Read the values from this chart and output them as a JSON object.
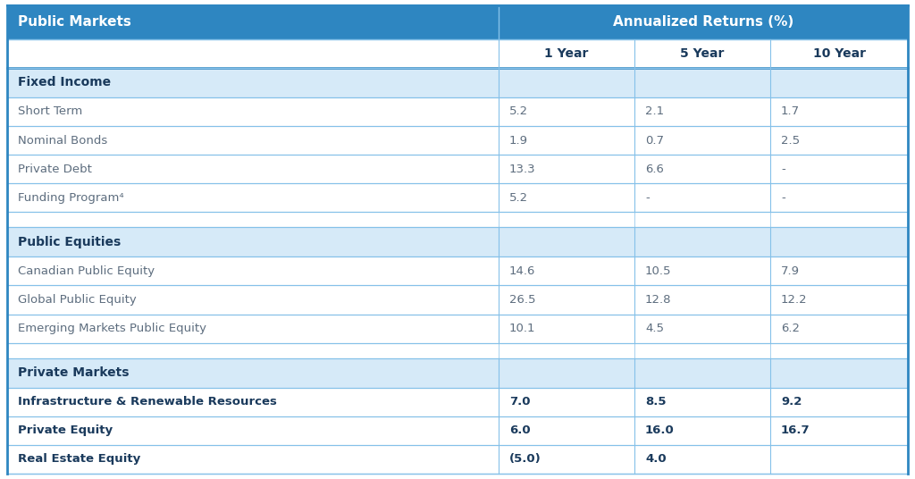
{
  "title_col": "Public Markets",
  "title_returns": "Annualized Returns (%)",
  "col_headers": [
    "1 Year",
    "5 Year",
    "10 Year"
  ],
  "sections": [
    {
      "header": "Fixed Income",
      "rows": [
        {
          "label": "Short Term",
          "bold": false,
          "vals": [
            "5.2",
            "2.1",
            "1.7"
          ]
        },
        {
          "label": "Nominal Bonds",
          "bold": false,
          "vals": [
            "1.9",
            "0.7",
            "2.5"
          ]
        },
        {
          "label": "Private Debt",
          "bold": false,
          "vals": [
            "13.3",
            "6.6",
            "-"
          ]
        },
        {
          "label": "Funding Program⁴",
          "bold": false,
          "vals": [
            "5.2",
            "-",
            "-"
          ]
        }
      ]
    },
    {
      "header": "Public Equities",
      "rows": [
        {
          "label": "Canadian Public Equity",
          "bold": false,
          "vals": [
            "14.6",
            "10.5",
            "7.9"
          ]
        },
        {
          "label": "Global Public Equity",
          "bold": false,
          "vals": [
            "26.5",
            "12.8",
            "12.2"
          ]
        },
        {
          "label": "Emerging Markets Public Equity",
          "bold": false,
          "vals": [
            "10.1",
            "4.5",
            "6.2"
          ]
        }
      ]
    },
    {
      "header": "Private Markets",
      "rows": [
        {
          "label": "Infrastructure & Renewable Resources",
          "bold": true,
          "vals": [
            "7.0",
            "8.5",
            "9.2"
          ]
        },
        {
          "label": "Private Equity",
          "bold": true,
          "vals": [
            "6.0",
            "16.0",
            "16.7"
          ]
        },
        {
          "label": "Real Estate Equity",
          "bold": true,
          "vals": [
            "(5.0)",
            "4.0",
            ""
          ]
        }
      ]
    }
  ],
  "top_header_bg": "#2e86c1",
  "top_header_text": "#ffffff",
  "col_header_bg": "#ffffff",
  "col_header_text": "#1a3a5c",
  "section_header_bg": "#d6eaf8",
  "section_header_text": "#1a3a5c",
  "data_row_bg": "#ffffff",
  "data_text_normal": "#5d6d7e",
  "data_text_bold": "#1a3a5c",
  "border_light": "#85c1e9",
  "border_thick": "#2e86c1",
  "spacer_bg": "#ffffff",
  "fig_width": 10.24,
  "fig_height": 5.36,
  "dpi": 100
}
